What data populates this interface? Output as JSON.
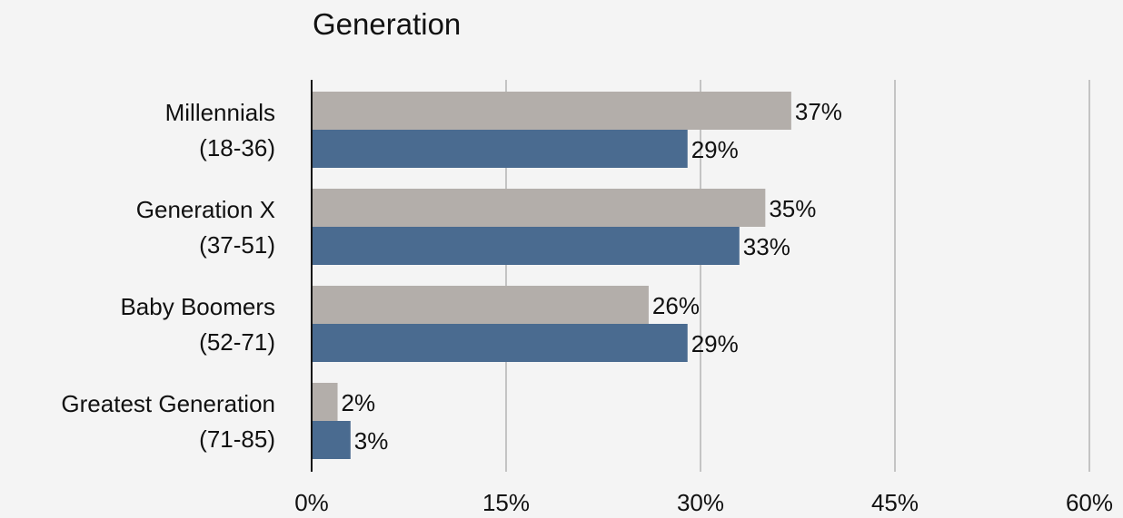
{
  "chart_data": {
    "type": "bar",
    "orientation": "horizontal",
    "title": "Generation",
    "categories": [
      [
        "Millennials",
        "(18-36)"
      ],
      [
        "Generation X",
        "(37-51)"
      ],
      [
        "Baby Boomers",
        "(52-71)"
      ],
      [
        "Greatest Generation",
        "(71-85)"
      ]
    ],
    "series": [
      {
        "color": "#b3aeaa",
        "values": [
          37,
          35,
          26,
          2
        ],
        "labels": [
          "37%",
          "35%",
          "26%",
          "2%"
        ]
      },
      {
        "color": "#4a6b90",
        "values": [
          29,
          33,
          29,
          3
        ],
        "labels": [
          "29%",
          "33%",
          "29%",
          "3%"
        ]
      }
    ],
    "xlim": [
      0,
      60
    ],
    "xticks": [
      0,
      15,
      30,
      45,
      60
    ],
    "xtick_labels": [
      "0%",
      "15%",
      "30%",
      "45%",
      "60%"
    ],
    "grid": true,
    "legend": false
  }
}
